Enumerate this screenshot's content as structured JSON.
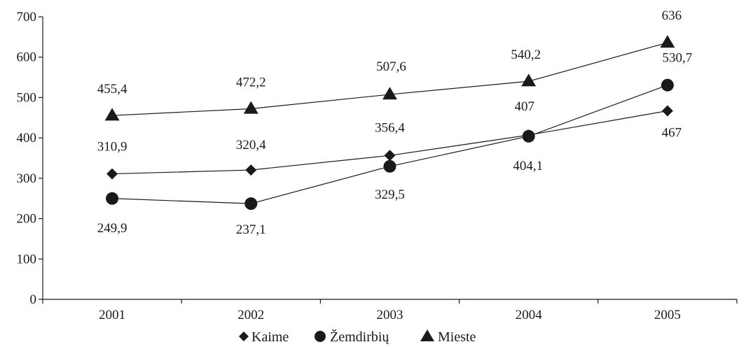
{
  "chart_data": {
    "type": "line",
    "categories": [
      "2001",
      "2002",
      "2003",
      "2004",
      "2005"
    ],
    "ylim": [
      0,
      700
    ],
    "yticks": [
      0,
      100,
      200,
      300,
      400,
      500,
      600,
      700
    ],
    "grid": false,
    "legend_position": "bottom",
    "series": [
      {
        "name": "Kaime",
        "marker": "diamond",
        "values": [
          310.9,
          320.4,
          356.4,
          407,
          467
        ],
        "labels": [
          "310,9",
          "320,4",
          "356,4",
          "407",
          "467"
        ]
      },
      {
        "name": "Žemdirbių",
        "marker": "circle",
        "values": [
          249.9,
          237.1,
          329.5,
          404.1,
          530.7
        ],
        "labels": [
          "249,9",
          "237,1",
          "329,5",
          "404,1",
          "530,7"
        ]
      },
      {
        "name": "Mieste",
        "marker": "triangle",
        "values": [
          455.4,
          472.2,
          507.6,
          540.2,
          636
        ],
        "labels": [
          "455,4",
          "472,2",
          "507,6",
          "540,2",
          "636"
        ]
      }
    ],
    "colors": {
      "ink": "#1a1a1a",
      "background": "#ffffff"
    }
  }
}
